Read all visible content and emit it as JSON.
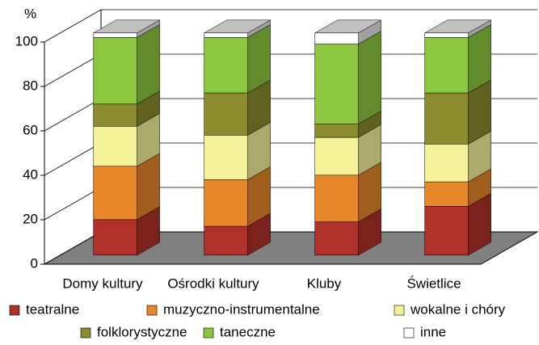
{
  "chart_data": {
    "type": "bar3d-stacked",
    "ylabel": "%",
    "categories": [
      "Domy kultury",
      "Ośrodki kultury",
      "Kluby",
      "Świetlice"
    ],
    "series": [
      {
        "name": "teatralne",
        "color": "#b0302a",
        "values": [
          16,
          13,
          15,
          22
        ]
      },
      {
        "name": "muzyczno-instrumentalne",
        "color": "#e8862a",
        "values": [
          24,
          21,
          21,
          11
        ]
      },
      {
        "name": "wokalne i chóry",
        "color": "#f5f29a",
        "values": [
          18,
          20,
          17,
          17
        ]
      },
      {
        "name": "folklorystyczne",
        "color": "#8c8c2e",
        "values": [
          10,
          19,
          6,
          23
        ]
      },
      {
        "name": "taneczne",
        "color": "#8cc63f",
        "values": [
          30,
          25,
          36,
          25
        ]
      },
      {
        "name": "inne",
        "color": "#ffffff",
        "values": [
          2,
          2,
          5,
          2
        ]
      }
    ],
    "ylim": [
      0,
      100
    ],
    "yticks": [
      0,
      20,
      40,
      60,
      80,
      100
    ],
    "grid": true
  }
}
